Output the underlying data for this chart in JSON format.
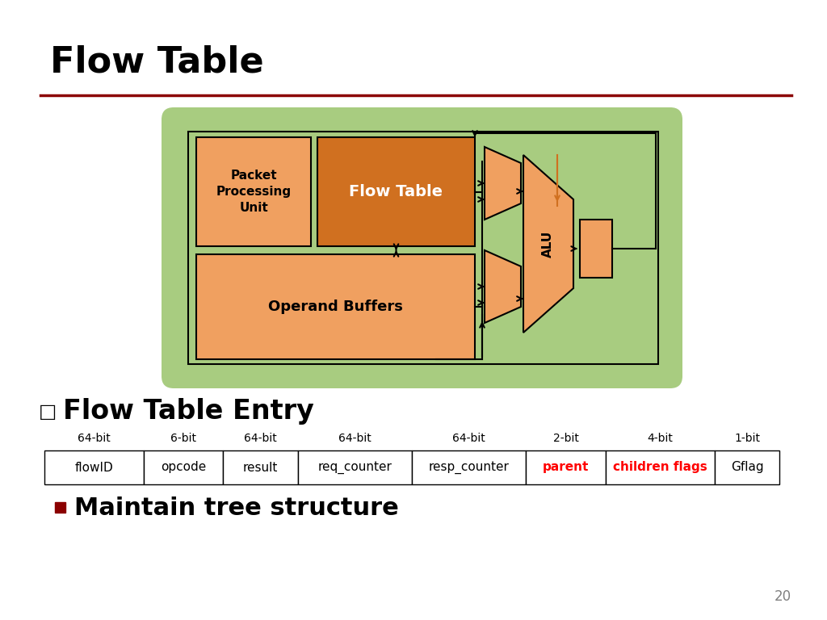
{
  "title": "Flow Table",
  "title_fontsize": 32,
  "line_color": "#8B0000",
  "bg_color": "#ffffff",
  "green_bg": "#a8cc80",
  "orange_light": "#f0a060",
  "orange_dark": "#d07020",
  "black": "#000000",
  "table_headers": [
    "64-bit",
    "6-bit",
    "64-bit",
    "64-bit",
    "64-bit",
    "2-bit",
    "4-bit",
    "1-bit"
  ],
  "table_cells": [
    "flowID",
    "opcode",
    "result",
    "req_counter",
    "resp_counter",
    "parent",
    "children flags",
    "Gflag"
  ],
  "cell_text_colors": [
    "black",
    "black",
    "black",
    "black",
    "black",
    "red",
    "red",
    "black"
  ],
  "cell_bold": [
    false,
    false,
    false,
    false,
    false,
    true,
    true,
    false
  ],
  "bullet_text": "Maintain tree structure",
  "bullet_color": "#8B0000",
  "page_num": "20",
  "subtitle": "Flow Table Entry"
}
